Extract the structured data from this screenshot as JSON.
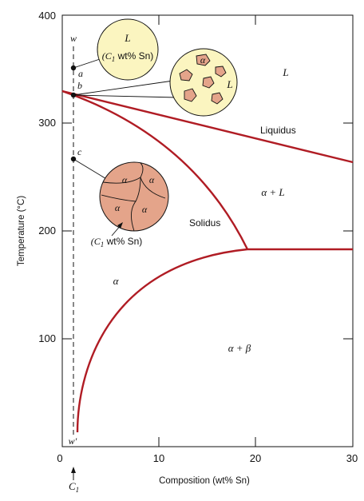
{
  "axes": {
    "x_label": "Composition (wt% Sn)",
    "y_label": "Temperature (°C)",
    "x_ticks": [
      "0",
      "10",
      "20",
      "30"
    ],
    "y_ticks": [
      "100",
      "200",
      "300",
      "400"
    ],
    "x_range": [
      0,
      30
    ],
    "y_range": [
      0,
      400
    ]
  },
  "curve_color": "#b01c24",
  "curves": {
    "liquidus": {
      "label": "Liquidus"
    },
    "solidus": {
      "label": "Solidus"
    }
  },
  "regions": {
    "liquid": "L",
    "alpha_liquid": "α + L",
    "alpha": "α",
    "alpha_beta": "α + β"
  },
  "composition_line": {
    "top_label": "w",
    "bottom_label": "w′",
    "c1_label": "C",
    "c1_sub": "1",
    "points": [
      "a",
      "b",
      "c"
    ]
  },
  "circles": {
    "a": {
      "phase": "L",
      "comp_open": "(C",
      "comp_sub": "1",
      "comp_close": " wt% Sn)",
      "fill": "#fbf5c0"
    },
    "b": {
      "grain_label": "α",
      "liquid_label": "L",
      "fill": "#fbf5c0",
      "grain_fill": "#e4a48a"
    },
    "c": {
      "grain_labels": [
        "α",
        "α",
        "α",
        "α"
      ],
      "comp_open": "(C",
      "comp_sub": "1",
      "comp_close": " wt% Sn)",
      "fill": "#e4a48a"
    }
  }
}
